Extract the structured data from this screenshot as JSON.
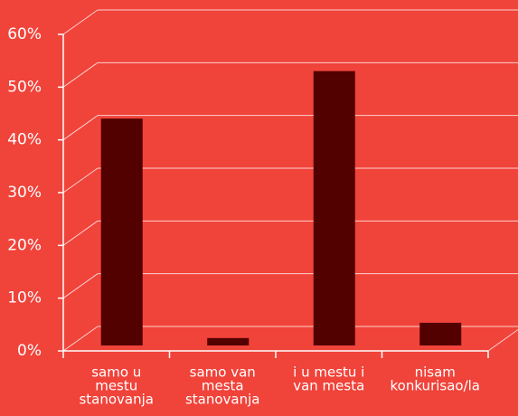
{
  "chart_data": {
    "type": "bar",
    "categories": [
      [
        "samo u",
        "mestu",
        "stanovanja"
      ],
      [
        "samo van",
        "mesta",
        "stanovanja"
      ],
      [
        "i u mestu i",
        "van mesta"
      ],
      [
        "nisam",
        "konkurisao/la"
      ]
    ],
    "values": [
      43,
      1.4,
      52,
      4.3
    ],
    "color": "#520000",
    "ylim": [
      0,
      60
    ],
    "yticks": [
      {
        "value": 0,
        "label": "0%"
      },
      {
        "value": 10,
        "label": "10%"
      },
      {
        "value": 20,
        "label": "20%"
      },
      {
        "value": 30,
        "label": "30%"
      },
      {
        "value": 40,
        "label": "40%"
      },
      {
        "value": 50,
        "label": "50%"
      },
      {
        "value": 60,
        "label": "60%"
      }
    ],
    "grid": true
  }
}
